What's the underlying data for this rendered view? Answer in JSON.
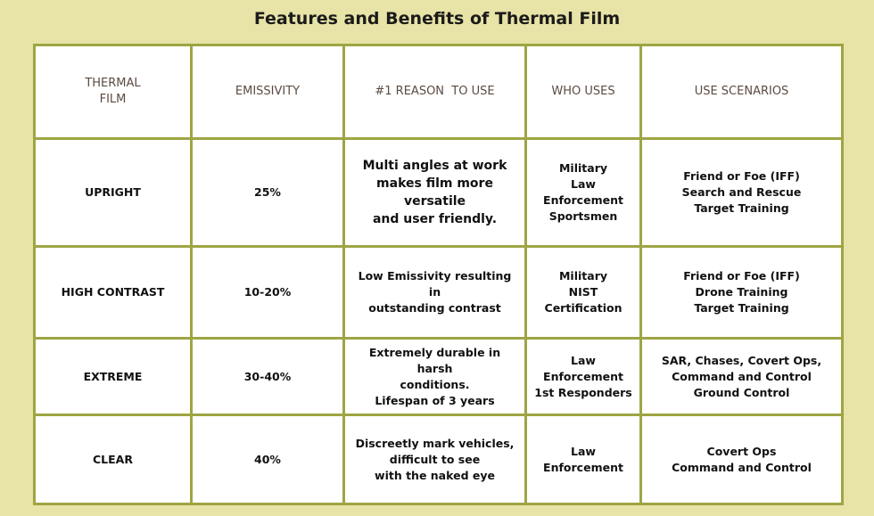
{
  "title": "Features and Benefits of Thermal Film",
  "columns": [
    {
      "lines": [
        "THERMAL",
        "FILM"
      ]
    },
    {
      "lines": [
        "EMISSIVITY"
      ]
    },
    {
      "lines": [
        "#1 REASON  TO USE"
      ]
    },
    {
      "lines": [
        "WHO USES"
      ]
    },
    {
      "lines": [
        "USE SCENARIOS"
      ]
    }
  ],
  "rows": [
    {
      "film": "UPRIGHT",
      "emissivity": "25%",
      "reason": [
        "Multi angles at work",
        "makes film more versatile",
        "and user friendly."
      ],
      "who": [
        "Military",
        "Law",
        "Enforcement",
        "Sportsmen"
      ],
      "scenarios": [
        "Friend or Foe (IFF)",
        "Search and Rescue",
        "Target Training"
      ]
    },
    {
      "film": "HIGH CONTRAST",
      "emissivity": "10-20%",
      "reason": [
        "Low Emissivity resulting in",
        "outstanding contrast"
      ],
      "who": [
        "Military",
        "NIST",
        "Certification"
      ],
      "scenarios": [
        "Friend or Foe (IFF)",
        "Drone Training",
        "Target Training"
      ]
    },
    {
      "film": "EXTREME",
      "emissivity": "30-40%",
      "reason": [
        "Extremely durable in harsh",
        "conditions.",
        "Lifespan of 3 years"
      ],
      "who": [
        "Law",
        "Enforcement",
        "1st Responders"
      ],
      "scenarios": [
        "SAR, Chases, Covert Ops,",
        "Command and Control",
        "Ground Control"
      ]
    },
    {
      "film": "CLEAR",
      "emissivity": "40%",
      "reason": [
        "Discreetly mark vehicles,",
        "difficult to see",
        "with the naked eye"
      ],
      "who": [
        "Law",
        "Enforcement"
      ],
      "scenarios": [
        "Covert Ops",
        "Command and Control"
      ]
    }
  ],
  "colors": {
    "background": "#e8e3a6",
    "border": "#9ea543",
    "header_text": "#5b4a42"
  }
}
